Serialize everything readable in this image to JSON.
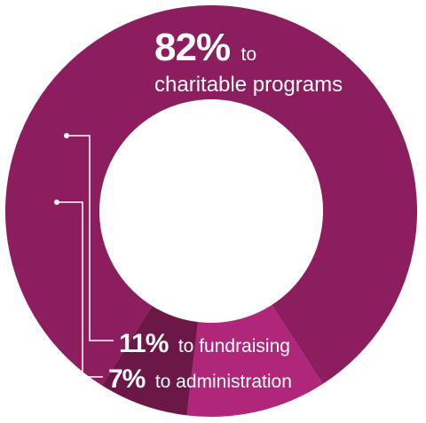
{
  "chart_data": {
    "type": "donut",
    "categories": [
      "charitable programs",
      "fundraising",
      "administration"
    ],
    "values": [
      82,
      11,
      7
    ],
    "unit": "%",
    "colors": [
      "#8c1d5f",
      "#b0267a",
      "#6b1748"
    ],
    "labels": [
      {
        "value": "82%",
        "text": "to",
        "text2": "charitable programs"
      },
      {
        "value": "11%",
        "text": "to fundraising"
      },
      {
        "value": "7%",
        "text": "to administration"
      }
    ],
    "legend": "none",
    "grid": false
  }
}
